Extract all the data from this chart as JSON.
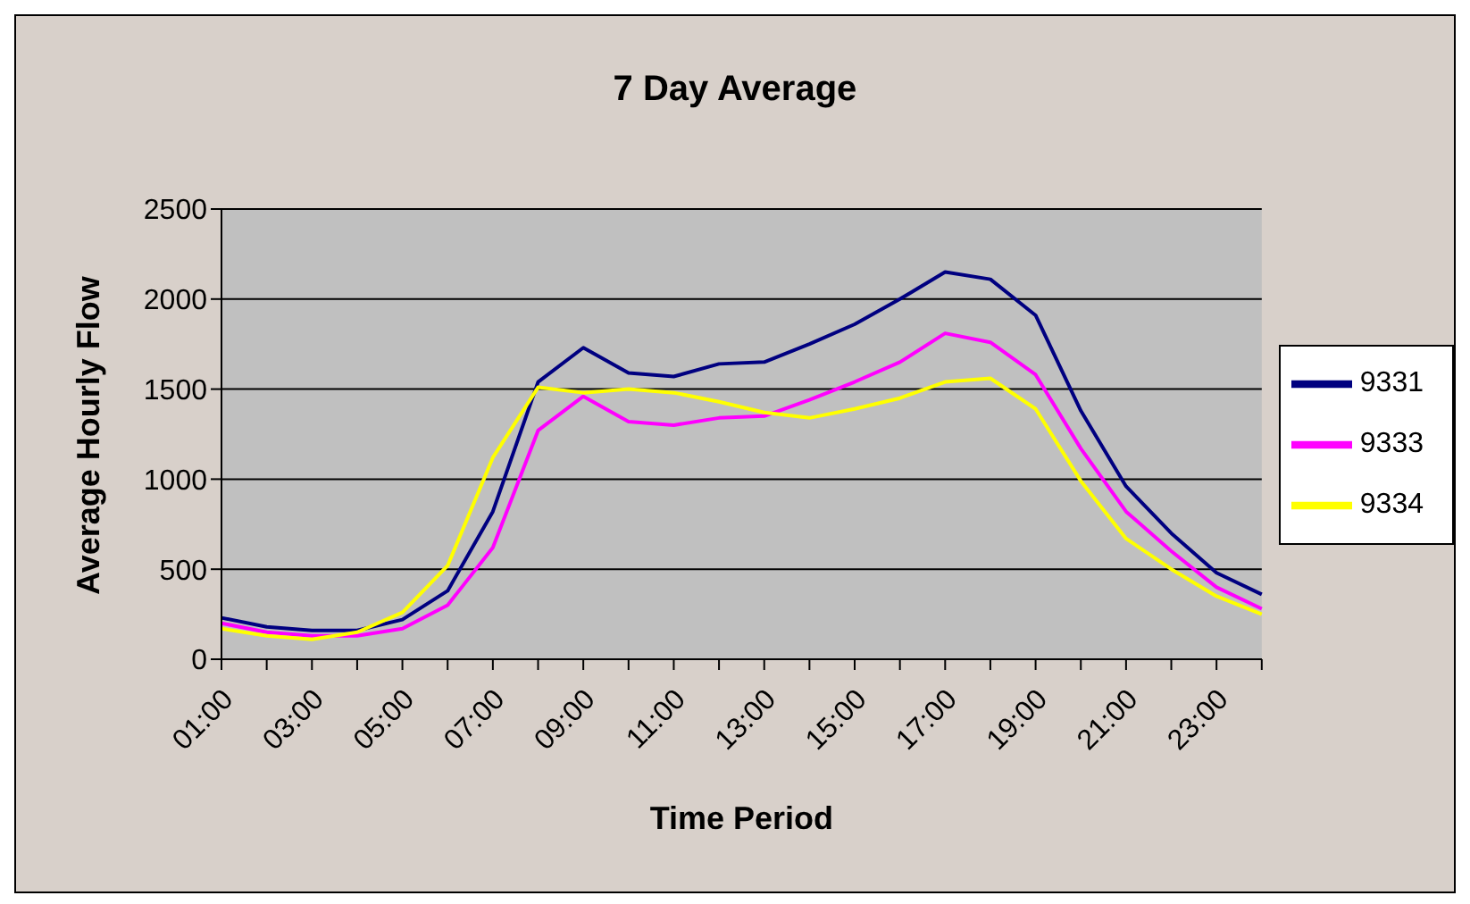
{
  "chart_data": {
    "type": "line",
    "title": "7 Day Average",
    "xlabel": "Time Period",
    "ylabel": "Average Hourly Flow",
    "categories": [
      "01:00",
      null,
      "03:00",
      null,
      "05:00",
      null,
      "07:00",
      null,
      "09:00",
      null,
      "11:00",
      null,
      "13:00",
      null,
      "15:00",
      null,
      "17:00",
      null,
      "19:00",
      null,
      "21:00",
      null,
      "23:00",
      null
    ],
    "series": [
      {
        "name": "9331",
        "color": "#000080",
        "values": [
          230,
          180,
          160,
          160,
          220,
          380,
          820,
          1540,
          1730,
          1590,
          1570,
          1640,
          1650,
          1750,
          1860,
          2000,
          2150,
          2110,
          1910,
          1380,
          960,
          700,
          480,
          360
        ]
      },
      {
        "name": "9333",
        "color": "#ff00ff",
        "values": [
          200,
          150,
          130,
          130,
          170,
          300,
          620,
          1270,
          1460,
          1320,
          1300,
          1340,
          1350,
          1440,
          1540,
          1650,
          1810,
          1760,
          1580,
          1170,
          820,
          600,
          400,
          280
        ]
      },
      {
        "name": "9334",
        "color": "#ffff00",
        "values": [
          170,
          130,
          110,
          150,
          260,
          520,
          1120,
          1510,
          1480,
          1500,
          1480,
          1430,
          1370,
          1340,
          1390,
          1450,
          1540,
          1560,
          1390,
          990,
          670,
          500,
          350,
          250
        ]
      }
    ],
    "ylim": [
      0,
      2500
    ],
    "yticks": [
      0,
      500,
      1000,
      1500,
      2000,
      2500
    ],
    "grid": "y",
    "legend": "right",
    "marker": "none",
    "line_style": "solid"
  }
}
